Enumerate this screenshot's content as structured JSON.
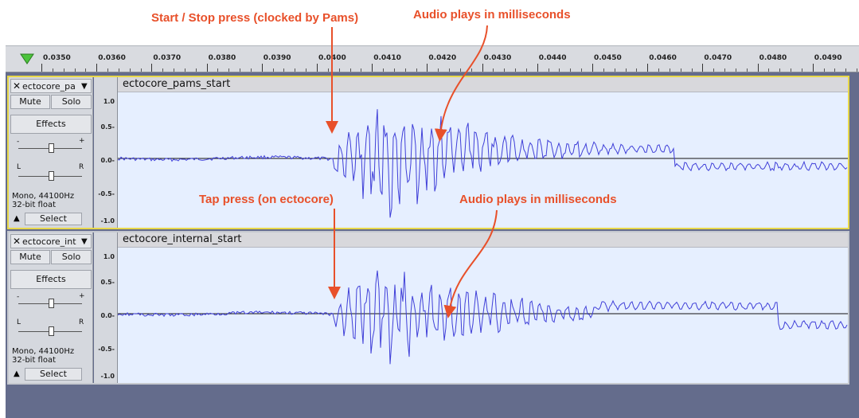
{
  "annotations": {
    "start_stop": "Start / Stop press (clocked by Pams)",
    "audio_top": "Audio plays in milliseconds",
    "tap_press": "Tap press (on ectocore)",
    "audio_bottom": "Audio plays in milliseconds"
  },
  "ruler": {
    "ticks": [
      "0.0350",
      "0.0360",
      "0.0370",
      "0.0380",
      "0.0390",
      "0.0400",
      "0.0410",
      "0.0420",
      "0.0430",
      "0.0440",
      "0.0450",
      "0.0460",
      "0.0470",
      "0.0480",
      "0.0490"
    ]
  },
  "tracks": [
    {
      "name": "ectocore_pa",
      "clip_name": "ectocore_pams_start",
      "mute_label": "Mute",
      "solo_label": "Solo",
      "effects_label": "Effects",
      "gain_minus": "-",
      "gain_plus": "+",
      "pan_left": "L",
      "pan_right": "R",
      "format_line1": "Mono, 44100Hz",
      "format_line2": "32-bit float",
      "select_label": "Select",
      "scale": [
        "1.0",
        "0.5-",
        "0.0-",
        "-0.5-",
        "-1.0"
      ]
    },
    {
      "name": "ectocore_int",
      "clip_name": "ectocore_internal_start",
      "mute_label": "Mute",
      "solo_label": "Solo",
      "effects_label": "Effects",
      "gain_minus": "-",
      "gain_plus": "+",
      "pan_left": "L",
      "pan_right": "R",
      "format_line1": "Mono, 44100Hz",
      "format_line2": "32-bit float",
      "select_label": "Select",
      "scale": [
        "1.0",
        "0.5-",
        "0.0-",
        "-0.5-",
        "-1.0"
      ]
    }
  ],
  "colors": {
    "annotation": "#e8502a",
    "waveform": "#3f3fd8",
    "wave_bg": "#e6efff",
    "selected_border": "#e8d84a"
  },
  "icons": {
    "play_marker": "green-triangle-icon",
    "close": "close-icon",
    "menu": "dropdown-arrow-icon",
    "collapse": "collapse-arrow-icon"
  }
}
